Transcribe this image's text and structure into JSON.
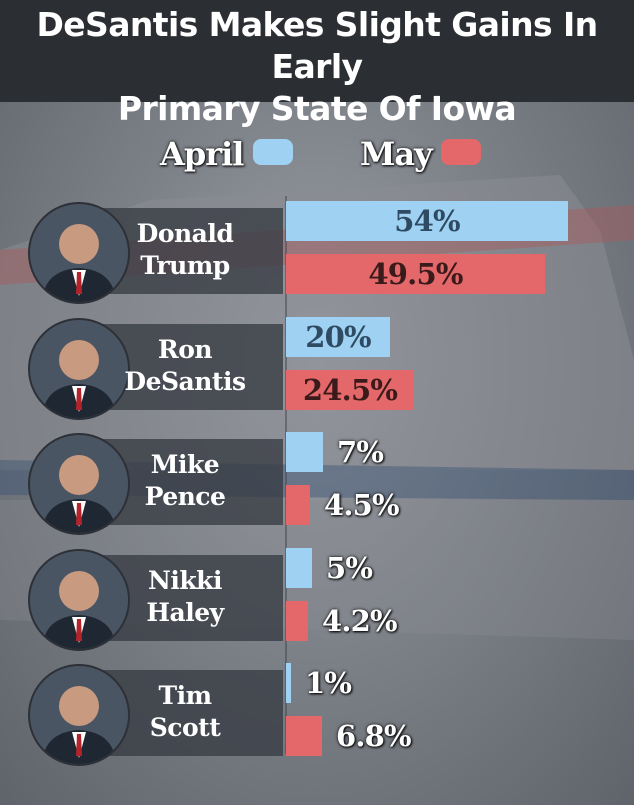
{
  "title": {
    "line1": "DeSantis Makes Slight Gains In Early",
    "line2": "Primary State Of Iowa"
  },
  "legend": {
    "april": "April",
    "may": "May"
  },
  "colors": {
    "april": "#9fd2f2",
    "may": "#e46869",
    "header_bg": "#2b2e33",
    "label_dark": "#2f3338",
    "label_light": "#ffffff"
  },
  "chart_data": {
    "type": "bar",
    "orientation": "horizontal",
    "title": "DeSantis Makes Slight Gains In Early Primary State Of Iowa",
    "categories": [
      "Donald Trump",
      "Ron DeSantis",
      "Mike Pence",
      "Nikki Haley",
      "Tim Scott"
    ],
    "category_lines": [
      [
        "Donald",
        "Trump"
      ],
      [
        "Ron",
        "DeSantis"
      ],
      [
        "Mike",
        "Pence"
      ],
      [
        "Nikki",
        "Haley"
      ],
      [
        "Tim",
        "Scott"
      ]
    ],
    "series": [
      {
        "name": "April",
        "values": [
          54,
          20,
          7,
          5,
          1
        ],
        "labels": [
          "54%",
          "20%",
          "7%",
          "5%",
          "1%"
        ]
      },
      {
        "name": "May",
        "values": [
          49.5,
          24.5,
          4.5,
          4.2,
          6.8
        ],
        "labels": [
          "49.5%",
          "24.5%",
          "4.5%",
          "4.2%",
          "6.8%"
        ]
      }
    ],
    "xlim": [
      0,
      54
    ],
    "legend_position": "top",
    "grid": false
  }
}
